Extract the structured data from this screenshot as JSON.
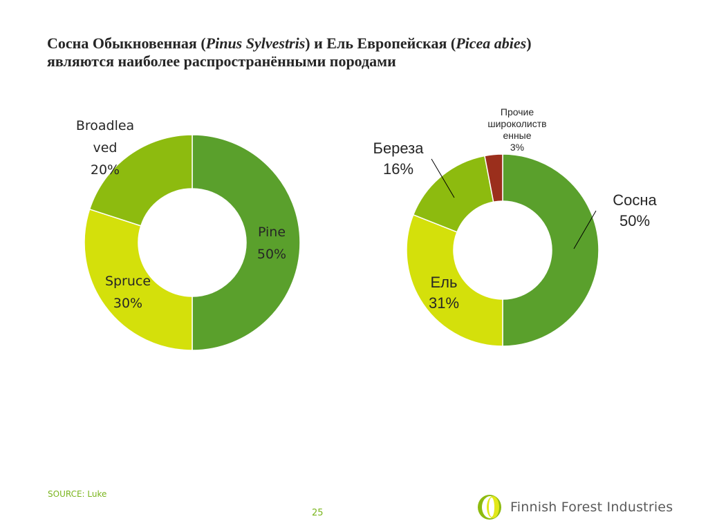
{
  "slide": {
    "title_line1_a": "Сосна Обыкновенная (",
    "title_line1_b": "Pinus Sylvestris",
    "title_line1_c": ") и Ель Европейская (",
    "title_line1_d": "Picea abies",
    "title_line1_e": ")",
    "title_line2": "являются наиболее распространёнными породами",
    "source": "SOURCE: Luke",
    "page_number": "25",
    "brand_name": "Finnish Forest Industries",
    "logo_icon": "leaf-logo-icon"
  },
  "colors": {
    "pine": "#5aa02c",
    "spruce": "#d4e00b",
    "broadleaved": "#8dbb0f",
    "other": "#9b2f1c",
    "accent": "#7ab51d"
  },
  "chart_data": [
    {
      "type": "pie",
      "donut": true,
      "slices": [
        {
          "label_lines": [
            "Pine"
          ],
          "value_label": "50%",
          "value": 50,
          "color": "#5aa02c"
        },
        {
          "label_lines": [
            "Spruce"
          ],
          "value_label": "30%",
          "value": 30,
          "color": "#d4e00b"
        },
        {
          "label_lines": [
            "Broadlea",
            "ved"
          ],
          "value_label": "20%",
          "value": 20,
          "color": "#8dbb0f"
        }
      ]
    },
    {
      "type": "pie",
      "donut": true,
      "slices": [
        {
          "label_lines": [
            "Сосна"
          ],
          "value_label": "50%",
          "value": 50,
          "color": "#5aa02c"
        },
        {
          "label_lines": [
            "Ель"
          ],
          "value_label": "31%",
          "value": 31,
          "color": "#d4e00b"
        },
        {
          "label_lines": [
            "Береза"
          ],
          "value_label": "16%",
          "value": 16,
          "color": "#8dbb0f"
        },
        {
          "label_lines": [
            "Прочие",
            "широколиств",
            "енные"
          ],
          "value_label": "3%",
          "value": 3,
          "color": "#9b2f1c"
        }
      ]
    }
  ]
}
